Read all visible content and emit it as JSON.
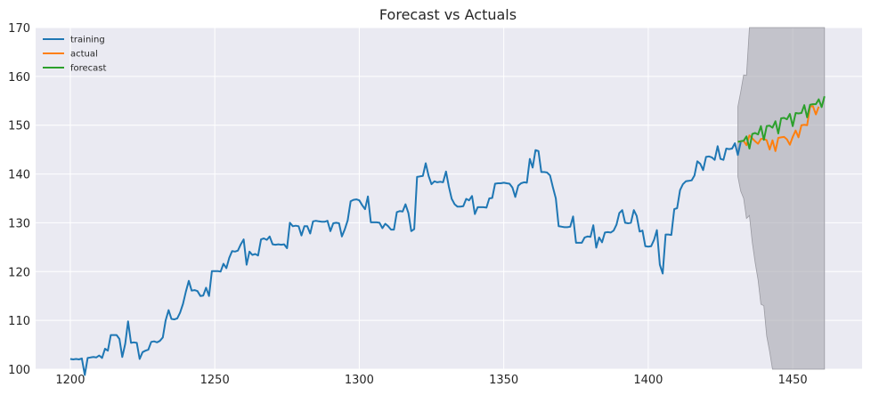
{
  "chart_data": {
    "type": "line",
    "title": "Forecast vs Actuals",
    "xlabel": "",
    "ylabel": "",
    "xlim": [
      1188,
      1474
    ],
    "ylim": [
      100,
      170
    ],
    "x_ticks": [
      1200,
      1250,
      1300,
      1350,
      1400,
      1450
    ],
    "y_ticks": [
      100,
      110,
      120,
      130,
      140,
      150,
      160,
      170
    ],
    "grid": true,
    "legend_position": "top-left",
    "colors": {
      "training": "#1f77b4",
      "actual": "#ff7f0e",
      "forecast": "#2ca02c",
      "interval": "#a9a9b1",
      "background": "#eaeaf2",
      "grid": "#ffffff"
    },
    "series": [
      {
        "name": "training",
        "x_start": 1200,
        "values": [
          102.1,
          102.0,
          102.1,
          102.0,
          102.2,
          98.8,
          102.3,
          102.4,
          102.5,
          102.4,
          102.8,
          102.3,
          104.2,
          103.8,
          107.0,
          107.0,
          107.0,
          106.2,
          102.5,
          105.2,
          109.8,
          105.4,
          105.5,
          105.4,
          102.1,
          103.5,
          103.8,
          104.0,
          105.6,
          105.7,
          105.5,
          105.8,
          106.5,
          110.0,
          112.1,
          110.3,
          110.2,
          110.4,
          111.6,
          113.4,
          115.9,
          118.1,
          116.1,
          116.2,
          116.0,
          115.0,
          115.1,
          116.7,
          115.0,
          120.1,
          120.1,
          120.1,
          120.0,
          121.6,
          120.7,
          122.8,
          124.2,
          124.1,
          124.3,
          125.6,
          126.6,
          121.4,
          124.1,
          123.4,
          123.6,
          123.3,
          126.6,
          126.8,
          126.5,
          127.2,
          125.6,
          125.5,
          125.6,
          125.5,
          125.6,
          124.8,
          130.0,
          129.3,
          129.4,
          129.3,
          127.4,
          129.3,
          129.3,
          127.8,
          130.3,
          130.4,
          130.3,
          130.2,
          130.2,
          130.4,
          128.3,
          129.9,
          130.0,
          129.9,
          127.2,
          128.7,
          130.5,
          134.4,
          134.7,
          134.8,
          134.6,
          133.6,
          132.8,
          135.4,
          130.1,
          130.1,
          130.1,
          130.0,
          128.9,
          129.8,
          129.3,
          128.6,
          128.6,
          132.2,
          132.4,
          132.3,
          133.8,
          132.0,
          128.3,
          128.7,
          139.4,
          139.5,
          139.6,
          142.2,
          139.6,
          137.9,
          138.5,
          138.3,
          138.4,
          138.3,
          140.5,
          137.4,
          134.9,
          133.8,
          133.3,
          133.3,
          133.4,
          134.9,
          134.6,
          135.5,
          131.8,
          133.2,
          133.2,
          133.2,
          133.1,
          135.0,
          135.1,
          138.0,
          138.1,
          138.1,
          138.2,
          138.1,
          138.0,
          137.2,
          135.3,
          137.6,
          138.1,
          138.3,
          138.2,
          143.1,
          141.3,
          144.9,
          144.7,
          140.4,
          140.4,
          140.3,
          139.7,
          137.3,
          135.0,
          129.3,
          129.2,
          129.1,
          129.1,
          129.2,
          131.3,
          125.9,
          125.9,
          125.9,
          127.0,
          127.2,
          127.1,
          129.5,
          124.9,
          127.0,
          126.0,
          128.0,
          128.1,
          128.0,
          128.4,
          129.6,
          132.0,
          132.6,
          130.0,
          129.9,
          130.0,
          132.6,
          131.4,
          128.2,
          128.4,
          125.2,
          125.1,
          125.2,
          126.5,
          128.5,
          121.4,
          119.6,
          127.6,
          127.6,
          127.5,
          132.8,
          133.0,
          136.7,
          137.9,
          138.5,
          138.6,
          138.7,
          139.7,
          142.6,
          142.1,
          140.8,
          143.5,
          143.6,
          143.4,
          142.9,
          145.7,
          143.1,
          142.9,
          145.2,
          145.1,
          145.2,
          146.3,
          143.9,
          146.5
        ]
      },
      {
        "name": "actual",
        "x_start": 1431,
        "values": [
          146.6,
          146.7,
          146.8,
          145.9,
          147.9,
          147.3,
          146.7,
          146.2,
          147.2,
          147.2,
          146.9,
          145.0,
          146.9,
          144.7,
          147.4,
          147.5,
          147.6,
          147.1,
          146.0,
          147.6,
          148.9,
          147.5,
          150.0,
          150.1,
          150.0,
          153.8,
          153.9,
          152.2,
          153.8
        ]
      },
      {
        "name": "forecast",
        "x_start": 1431,
        "values": [
          146.6,
          146.7,
          146.8,
          147.7,
          145.2,
          148.2,
          148.4,
          148.1,
          149.8,
          147.0,
          149.8,
          149.9,
          149.5,
          150.8,
          148.3,
          151.4,
          151.5,
          151.2,
          152.3,
          149.8,
          152.5,
          152.4,
          152.5,
          154.1,
          151.6,
          154.2,
          154.3,
          154.3,
          155.3,
          153.7,
          155.9
        ]
      }
    ],
    "interval": {
      "x": [
        1431,
        1432,
        1433,
        1434,
        1435,
        1436,
        1437,
        1438,
        1439,
        1440,
        1441,
        1442,
        1443,
        1444,
        1445,
        1446,
        1447,
        1448,
        1449,
        1450,
        1451,
        1452,
        1453,
        1454,
        1455,
        1456,
        1457,
        1458,
        1459,
        1460,
        1461
      ],
      "upper": [
        153.8,
        156.8,
        160.3,
        160.2,
        170.0,
        170.0,
        170.0,
        170.0,
        170.0,
        170.0,
        170.0,
        170.0,
        170.0,
        170.0,
        170.0,
        170.0,
        170.0,
        170.0,
        170.0,
        170.0,
        170.0,
        170.0,
        170.0,
        170.0,
        170.0,
        170.0,
        170.0,
        170.0,
        170.0,
        170.0,
        170.0
      ],
      "lower": [
        139.5,
        136.5,
        135.0,
        130.9,
        131.5,
        126.0,
        121.9,
        118.3,
        113.3,
        113.0,
        106.8,
        103.6,
        100.0,
        100.0,
        100.0,
        100.0,
        100.0,
        100.0,
        100.0,
        100.0,
        100.0,
        100.0,
        100.0,
        100.0,
        100.0,
        100.0,
        100.0,
        100.0,
        100.0,
        100.0,
        100.0
      ]
    }
  }
}
